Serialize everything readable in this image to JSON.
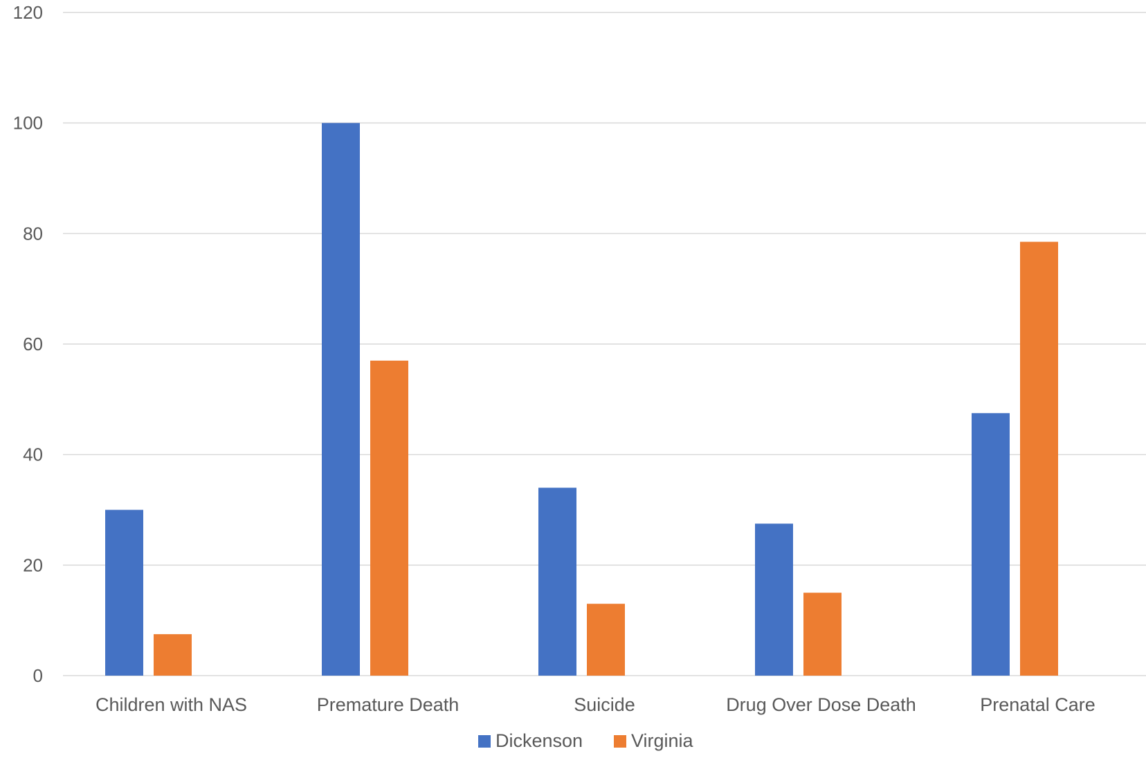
{
  "chart_data": {
    "type": "bar",
    "title": "",
    "xlabel": "",
    "ylabel": "",
    "categories": [
      "Children with NAS",
      "Premature Death",
      "Suicide",
      "Drug Over Dose Death",
      "Prenatal Care"
    ],
    "series": [
      {
        "name": "Dickenson",
        "color": "#4472C4",
        "values": [
          30,
          100,
          34,
          27.5,
          47.5
        ]
      },
      {
        "name": "Virginia",
        "color": "#ED7D31",
        "values": [
          7.5,
          57,
          13,
          15,
          78.5
        ]
      }
    ],
    "ylim": [
      0,
      120
    ],
    "yticks": [
      0,
      20,
      40,
      60,
      80,
      100,
      120
    ],
    "grid": true,
    "legend_position": "bottom"
  }
}
